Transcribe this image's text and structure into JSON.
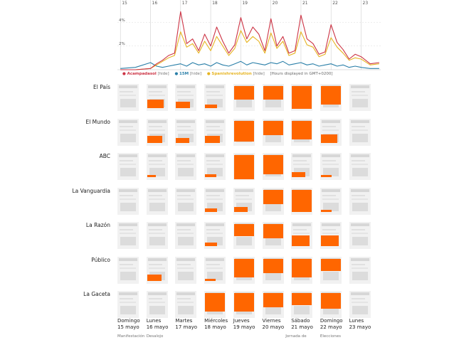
{
  "chart_data": {
    "type": "line",
    "x": [
      15,
      15.5,
      16,
      16.2,
      16.4,
      16.6,
      16.8,
      17,
      17.2,
      17.4,
      17.6,
      17.8,
      18,
      18.2,
      18.4,
      18.6,
      18.8,
      19,
      19.2,
      19.4,
      19.6,
      19.8,
      20,
      20.2,
      20.4,
      20.6,
      20.8,
      21,
      21.2,
      21.4,
      21.6,
      21.8,
      22,
      22.2,
      22.4,
      22.6,
      22.8,
      23,
      23.3,
      23.6
    ],
    "xlim": [
      14.9,
      23.65
    ],
    "xticks": [
      "15",
      "16",
      "17",
      "18",
      "19",
      "20",
      "21",
      "22",
      "23"
    ],
    "ylim": [
      0,
      5.4
    ],
    "yticks": [
      {
        "value": 4,
        "label": "4%"
      },
      {
        "value": 2,
        "label": "2%"
      }
    ],
    "series": [
      {
        "name": "Acampadasol",
        "color": "#cc3344",
        "values": [
          0,
          0,
          0.1,
          0.5,
          0.8,
          1.2,
          1.4,
          4.9,
          2.2,
          2.6,
          1.6,
          3.0,
          2.0,
          3.6,
          2.4,
          1.4,
          2.1,
          4.4,
          2.6,
          3.6,
          3.0,
          1.6,
          4.3,
          2.0,
          2.8,
          1.4,
          1.6,
          4.6,
          2.6,
          2.2,
          1.3,
          1.5,
          3.8,
          2.3,
          1.7,
          0.9,
          1.3,
          1.1,
          0.5,
          0.6
        ]
      },
      {
        "name": "15M",
        "color": "#2a7fa8",
        "values": [
          0.1,
          0.2,
          0.6,
          0.3,
          0.2,
          0.3,
          0.4,
          0.5,
          0.3,
          0.6,
          0.4,
          0.5,
          0.3,
          0.6,
          0.4,
          0.3,
          0.5,
          0.7,
          0.4,
          0.6,
          0.5,
          0.4,
          0.6,
          0.5,
          0.7,
          0.4,
          0.5,
          0.6,
          0.4,
          0.5,
          0.3,
          0.4,
          0.5,
          0.3,
          0.4,
          0.2,
          0.3,
          0.2,
          0.1,
          0.1
        ]
      },
      {
        "name": "Spanishrevolution",
        "color": "#e6b422",
        "values": [
          0,
          0,
          0.1,
          0.4,
          0.7,
          1.0,
          1.2,
          3.2,
          1.9,
          2.2,
          1.4,
          2.4,
          1.6,
          2.8,
          2.0,
          1.2,
          1.8,
          3.3,
          2.3,
          2.8,
          2.4,
          1.4,
          3.1,
          1.8,
          2.4,
          1.2,
          1.4,
          3.2,
          2.1,
          1.9,
          1.1,
          1.3,
          2.7,
          1.9,
          1.4,
          0.8,
          1.0,
          0.9,
          0.4,
          0.5
        ]
      }
    ],
    "legend": [
      {
        "label": "Acampadasol",
        "hide": "[hide]",
        "color": "#cc3344"
      },
      {
        "label": "15M",
        "hide": "[hide]",
        "color": "#2a7fa8"
      },
      {
        "label": "Spanishrevolution",
        "hide": "[hide]",
        "color": "#e6b422"
      }
    ],
    "note": "[Hours displayed in GMT+0200]",
    "newspapers": [
      "El País",
      "El Mundo",
      "ABC",
      "La Vanguardia",
      "La Razón",
      "Público",
      "La Gaceta"
    ],
    "days": [
      {
        "weekday": "Domingo",
        "date": "15 mayo"
      },
      {
        "weekday": "Lunes",
        "date": "16 mayo"
      },
      {
        "weekday": "Martes",
        "date": "17 mayo"
      },
      {
        "weekday": "Miércoles",
        "date": "18 mayo"
      },
      {
        "weekday": "Jueves",
        "date": "19 mayo"
      },
      {
        "weekday": "Viernes",
        "date": "20 mayo"
      },
      {
        "weekday": "Sábado",
        "date": "21 mayo"
      },
      {
        "weekday": "Domingo",
        "date": "22 mayo"
      },
      {
        "weekday": "Lunes",
        "date": "23 mayo"
      }
    ],
    "events": [
      "Manifestación",
      "Desalojo",
      "Jornada de",
      "Elecciones"
    ],
    "front_page_coverage": {
      "El País": [
        0,
        0.35,
        0.25,
        0.15,
        0.55,
        0.55,
        0.95,
        0.75,
        0
      ],
      "El Mundo": [
        0,
        0.3,
        0.2,
        0.3,
        0.85,
        0.6,
        0.75,
        0.35,
        0
      ],
      "ABC": [
        0,
        0.05,
        0,
        0.12,
        1.0,
        0.8,
        0.2,
        0.1,
        0
      ],
      "La Vanguardia": [
        0,
        0,
        0,
        0.15,
        0.2,
        0.6,
        0.9,
        0.1,
        0
      ],
      "La Razón": [
        0,
        0,
        0,
        0.15,
        0.5,
        0.6,
        0.45,
        0.45,
        0
      ],
      "Público": [
        0,
        0.25,
        0,
        0.1,
        0.75,
        0.6,
        0.75,
        0.5,
        0
      ],
      "La Gaceta": [
        0,
        0,
        0,
        0.75,
        0.75,
        0.6,
        0.5,
        0.65,
        0
      ]
    },
    "accent": "#ff6600"
  }
}
